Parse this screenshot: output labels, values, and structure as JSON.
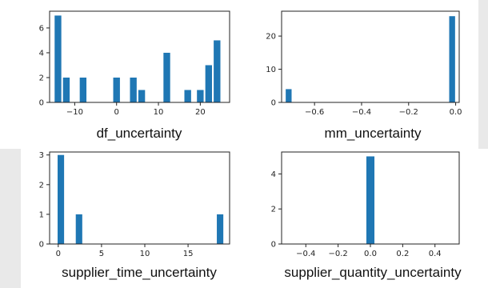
{
  "bar_color": "#1f77b4",
  "chart_data": [
    {
      "type": "bar",
      "title": "",
      "xlabel": "df_uncertainty",
      "ylabel": "",
      "x": [
        -14,
        -12,
        -8,
        0,
        4,
        6,
        12,
        17,
        20,
        22,
        24
      ],
      "values": [
        7,
        2,
        2,
        2,
        2,
        1,
        4,
        1,
        1,
        3,
        5
      ],
      "xlim": [
        -16,
        27
      ],
      "ylim": [
        0,
        7.35
      ],
      "xticks": [
        -10,
        0,
        10,
        20
      ],
      "xtick_labels": [
        "−10",
        "0",
        "10",
        "20"
      ],
      "yticks": [
        0,
        2,
        4,
        6
      ],
      "ytick_labels": [
        "0",
        "2",
        "4",
        "6"
      ],
      "bar_width": 1.6,
      "grid": false
    },
    {
      "type": "bar",
      "title": "",
      "xlabel": "mm_uncertainty",
      "ylabel": "",
      "x": [
        -0.71,
        -0.015
      ],
      "values": [
        4,
        26
      ],
      "xlim": [
        -0.74,
        0.015
      ],
      "ylim": [
        0,
        27.5
      ],
      "xticks": [
        -0.6,
        -0.4,
        -0.2,
        0.0
      ],
      "xtick_labels": [
        "−0.6",
        "−0.4",
        "−0.2",
        "0.0"
      ],
      "yticks": [
        0,
        10,
        20
      ],
      "ytick_labels": [
        "0",
        "10",
        "20"
      ],
      "bar_width": 0.025,
      "grid": false
    },
    {
      "type": "bar",
      "title": "",
      "xlabel": "supplier_time_uncertainty",
      "ylabel": "",
      "x": [
        0.3,
        2.4,
        18.7
      ],
      "values": [
        3,
        1,
        1
      ],
      "xlim": [
        -1.0,
        19.8
      ],
      "ylim": [
        0,
        3.1
      ],
      "xticks": [
        0,
        5,
        10,
        15
      ],
      "xtick_labels": [
        "0",
        "5",
        "10",
        "15"
      ],
      "yticks": [
        0,
        1,
        2,
        3
      ],
      "ytick_labels": [
        "0",
        "1",
        "2",
        "3"
      ],
      "bar_width": 0.75,
      "grid": false
    },
    {
      "type": "bar",
      "title": "",
      "xlabel": "supplier_quantity_uncertainty",
      "ylabel": "",
      "x": [
        0.0
      ],
      "values": [
        5
      ],
      "xlim": [
        -0.55,
        0.55
      ],
      "ylim": [
        0,
        5.25
      ],
      "xticks": [
        -0.4,
        -0.2,
        0.0,
        0.2,
        0.4
      ],
      "xtick_labels": [
        "−0.4",
        "−0.2",
        "0.0",
        "0.2",
        "0.4"
      ],
      "yticks": [
        0,
        2,
        4
      ],
      "ytick_labels": [
        "0",
        "2",
        "4"
      ],
      "bar_width": 0.05,
      "grid": false
    }
  ]
}
